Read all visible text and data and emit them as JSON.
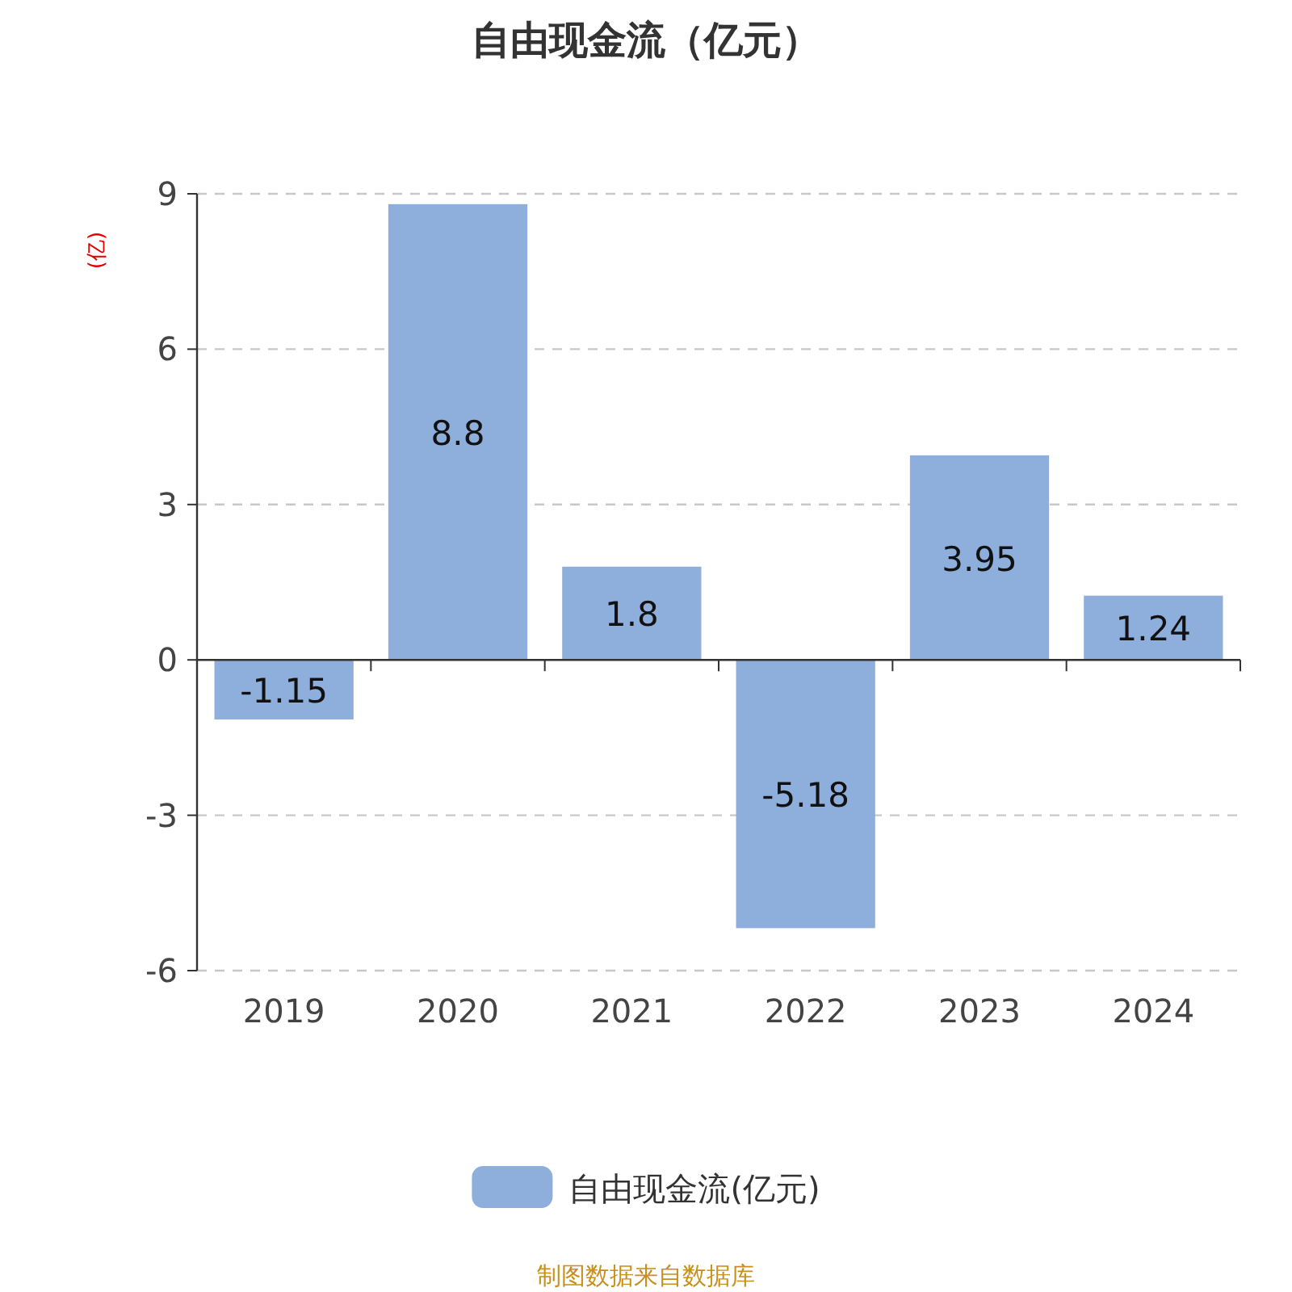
{
  "chart_data": {
    "type": "bar",
    "title": "自由现金流（亿元）",
    "ylabel": "(亿)",
    "categories": [
      "2019",
      "2020",
      "2021",
      "2022",
      "2023",
      "2024"
    ],
    "series": [
      {
        "name": "自由现金流(亿元)",
        "color": "#8eaedb",
        "values": [
          -1.15,
          8.8,
          1.8,
          -5.18,
          3.95,
          1.24
        ]
      }
    ],
    "ylim": [
      -6,
      9
    ],
    "yticks": [
      -6,
      -3,
      0,
      3,
      6,
      9
    ],
    "grid": "y",
    "legend": "bottom",
    "data_labels": true,
    "annotations": [
      "制图数据来自数据库"
    ]
  }
}
